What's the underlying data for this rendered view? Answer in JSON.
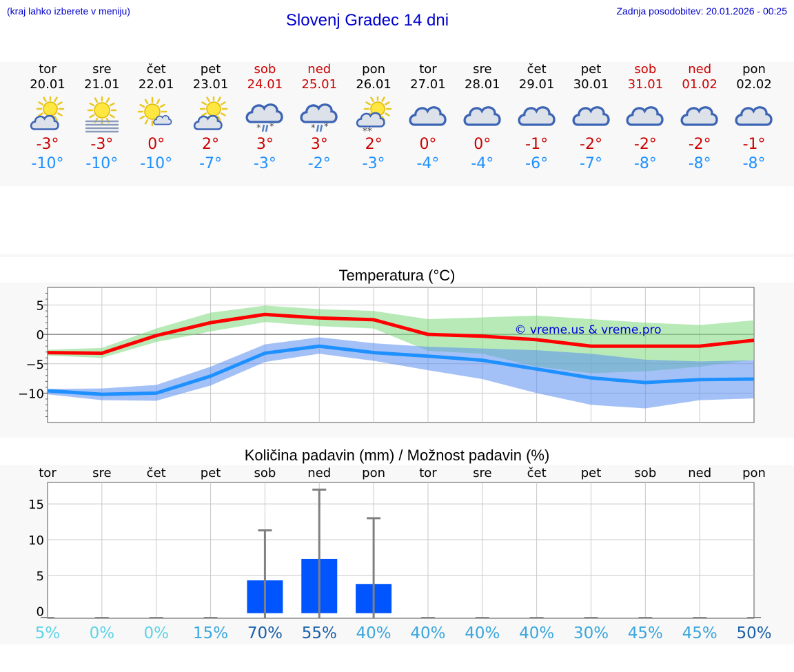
{
  "header": {
    "left_note": "(kraj lahko izberete v meniju)",
    "title": "Slovenj Gradec 14 dni",
    "updated": "Zadnja posodobitev: 20.01.2026 - 00:25"
  },
  "days": [
    {
      "name": "tor",
      "date": "20.01",
      "weekend": false,
      "icon": "partly-cloudy-sun-icon",
      "tmax": "-3°",
      "tmin": "-10°"
    },
    {
      "name": "sre",
      "date": "21.01",
      "weekend": false,
      "icon": "sun-fog-icon",
      "tmax": "-3°",
      "tmin": "-10°"
    },
    {
      "name": "čet",
      "date": "22.01",
      "weekend": false,
      "icon": "sun-small-cloud-icon",
      "tmax": "0°",
      "tmin": "-10°"
    },
    {
      "name": "pet",
      "date": "23.01",
      "weekend": false,
      "icon": "partly-cloudy-sun-icon",
      "tmax": "2°",
      "tmin": "-7°"
    },
    {
      "name": "sob",
      "date": "24.01",
      "weekend": true,
      "icon": "cloud-sleet-icon",
      "tmax": "3°",
      "tmin": "-3°"
    },
    {
      "name": "ned",
      "date": "25.01",
      "weekend": true,
      "icon": "cloud-sleet-icon",
      "tmax": "3°",
      "tmin": "-2°"
    },
    {
      "name": "pon",
      "date": "26.01",
      "weekend": false,
      "icon": "sun-cloud-snow-icon",
      "tmax": "2°",
      "tmin": "-3°"
    },
    {
      "name": "tor",
      "date": "27.01",
      "weekend": false,
      "icon": "cloudy-icon",
      "tmax": "0°",
      "tmin": "-4°"
    },
    {
      "name": "sre",
      "date": "28.01",
      "weekend": false,
      "icon": "cloudy-icon",
      "tmax": "0°",
      "tmin": "-4°"
    },
    {
      "name": "čet",
      "date": "29.01",
      "weekend": false,
      "icon": "cloudy-icon",
      "tmax": "-1°",
      "tmin": "-6°"
    },
    {
      "name": "pet",
      "date": "30.01",
      "weekend": false,
      "icon": "cloudy-icon",
      "tmax": "-2°",
      "tmin": "-7°"
    },
    {
      "name": "sob",
      "date": "31.01",
      "weekend": true,
      "icon": "cloudy-icon",
      "tmax": "-2°",
      "tmin": "-8°"
    },
    {
      "name": "ned",
      "date": "01.02",
      "weekend": true,
      "icon": "cloudy-icon",
      "tmax": "-2°",
      "tmin": "-8°"
    },
    {
      "name": "pon",
      "date": "02.02",
      "weekend": false,
      "icon": "cloudy-icon",
      "tmax": "-1°",
      "tmin": "-8°"
    }
  ],
  "chart_data": [
    {
      "type": "area",
      "title": "Temperatura (°C)",
      "watermark": "© vreme.us & vreme.pro",
      "ylim": [
        -15,
        8
      ],
      "yticks": [
        5,
        0,
        -5,
        -10
      ],
      "ytick_labels": [
        "5",
        "0",
        "−5",
        "−10"
      ],
      "x": [
        0,
        1,
        2,
        3,
        4,
        5,
        6,
        7,
        8,
        9,
        10,
        11,
        12,
        13
      ],
      "series": [
        {
          "name": "max",
          "color": "#ff0000",
          "values": [
            -3.1,
            -3.2,
            -0.2,
            2.0,
            3.4,
            2.8,
            2.5,
            0.0,
            -0.3,
            -0.9,
            -2.0,
            -2.0,
            -2.0,
            -1.0
          ],
          "band_low": [
            -3.6,
            -4.0,
            -1.3,
            0.5,
            2.1,
            1.4,
            1.0,
            -2.8,
            -3.3,
            -5.5,
            -6.6,
            -6.3,
            -5.5,
            -4.3
          ],
          "band_high": [
            -2.6,
            -2.3,
            1.0,
            3.7,
            4.9,
            4.3,
            4.0,
            2.6,
            2.9,
            3.2,
            2.6,
            2.0,
            1.6,
            2.4
          ],
          "band_color": "#7ed87e"
        },
        {
          "name": "min",
          "color": "#1e90ff",
          "values": [
            -9.6,
            -10.2,
            -10.0,
            -7.1,
            -3.2,
            -2.0,
            -3.1,
            -3.7,
            -4.4,
            -5.9,
            -7.4,
            -8.2,
            -7.7,
            -7.6
          ],
          "band_low": [
            -10.2,
            -11.2,
            -11.3,
            -8.7,
            -4.7,
            -3.3,
            -4.5,
            -6.1,
            -7.6,
            -10.0,
            -12.0,
            -12.6,
            -11.2,
            -10.9
          ],
          "band_high": [
            -9.3,
            -9.2,
            -8.6,
            -5.5,
            -1.7,
            -0.5,
            -1.5,
            -2.1,
            -2.4,
            -2.7,
            -3.3,
            -4.3,
            -4.6,
            -4.4
          ],
          "band_color": "#5a8ef0"
        }
      ]
    },
    {
      "type": "bar",
      "title": "Količina padavin (mm) / Možnost padavin (%)",
      "categories": [
        "tor",
        "sre",
        "čet",
        "pet",
        "sob",
        "ned",
        "pon",
        "tor",
        "sre",
        "čet",
        "pet",
        "sob",
        "ned",
        "pon"
      ],
      "ylim": [
        -1,
        18
      ],
      "yticks": [
        15,
        10,
        5,
        0
      ],
      "values": [
        0,
        0,
        0,
        0,
        4.3,
        7.3,
        3.8,
        0,
        0,
        0,
        0,
        0,
        0,
        0
      ],
      "error_high": [
        0,
        0,
        0,
        0,
        11.3,
        17.0,
        13.0,
        0,
        0,
        0,
        0,
        0,
        0,
        0
      ],
      "bar_color": "#0055ff",
      "probability": [
        "5%",
        "0%",
        "0%",
        "15%",
        "70%",
        "55%",
        "40%",
        "40%",
        "40%",
        "40%",
        "30%",
        "45%",
        "45%",
        "50%"
      ],
      "probability_color": [
        "#5dd3e6",
        "#5dd3e6",
        "#5dd3e6",
        "#3aa6dd",
        "#1b5fa8",
        "#1b5fa8",
        "#3aa6dd",
        "#3aa6dd",
        "#3aa6dd",
        "#3aa6dd",
        "#3aa6dd",
        "#3aa6dd",
        "#3aa6dd",
        "#1b5fa8"
      ]
    }
  ]
}
